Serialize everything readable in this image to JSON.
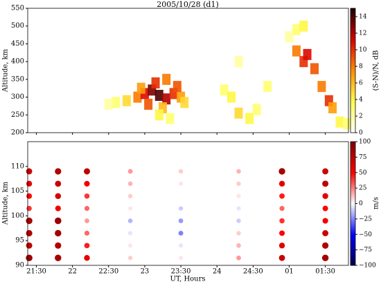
{
  "chart_data": [
    {
      "type": "heatmap",
      "title": "2005/10/28 (d1)",
      "ylabel": "Altitude, km",
      "colorbar_label": "(S-N)/N, dB",
      "colormap": "hot_r",
      "xlim": [
        21.38,
        25.82
      ],
      "ylim": [
        200,
        550
      ],
      "yticks": [
        200,
        250,
        300,
        350,
        400,
        450,
        500,
        550
      ],
      "clim": [
        0,
        15
      ],
      "cticks": [
        0,
        2,
        4,
        6,
        8,
        10,
        12,
        14
      ],
      "x": [
        22.6,
        22.75,
        22.9,
        23.0,
        23.1,
        23.2,
        23.3,
        23.4,
        23.5,
        23.05,
        23.25,
        23.15,
        23.3,
        23.45,
        22.95,
        23.2,
        23.35,
        22.5,
        23.55,
        24.1,
        24.2,
        24.3,
        24.45,
        24.55,
        24.3,
        24.7,
        25.1,
        25.2,
        25.25,
        25.1,
        25.2,
        25.35,
        25.45,
        25.55,
        25.6,
        25.7,
        25.8,
        25.0
      ],
      "y": [
        285,
        290,
        300,
        310,
        320,
        305,
        295,
        310,
        300,
        280,
        270,
        340,
        350,
        330,
        325,
        250,
        240,
        280,
        285,
        320,
        300,
        255,
        240,
        265,
        400,
        330,
        430,
        400,
        420,
        490,
        500,
        380,
        330,
        290,
        270,
        230,
        225,
        470
      ],
      "values": [
        3,
        5,
        8,
        11,
        13,
        14,
        12,
        10,
        7,
        9,
        6,
        10,
        8,
        9,
        7,
        4,
        3,
        2,
        5,
        3,
        4,
        5,
        4,
        3,
        2,
        3,
        8,
        10,
        11,
        3,
        4,
        9,
        8,
        10,
        7,
        4,
        3,
        2
      ]
    },
    {
      "type": "scatter",
      "xlabel": "UT, Hours",
      "ylabel": "Altitude, km",
      "colorbar_label": "m/s",
      "colormap": "seismic",
      "xlim": [
        21.38,
        25.82
      ],
      "ylim": [
        90,
        115
      ],
      "yticks": [
        90,
        95,
        100,
        105,
        110
      ],
      "xticks": [
        {
          "value": 21.5,
          "label": "21:30"
        },
        22,
        {
          "value": 22.5,
          "label": "22:30"
        },
        23,
        {
          "value": 23.5,
          "label": "23:30"
        },
        24,
        {
          "value": 24.5,
          "label": "24:30"
        },
        {
          "value": 25,
          "label": "01"
        },
        {
          "value": 25.5,
          "label": "01:30"
        }
      ],
      "clim": [
        -100,
        100
      ],
      "cticks": [
        {
          "value": -100,
          "label": "−100"
        },
        {
          "value": -75,
          "label": "−75"
        },
        {
          "value": -50,
          "label": "−50"
        },
        {
          "value": -25,
          "label": "−25"
        },
        0,
        25,
        50,
        75,
        100
      ],
      "x": [
        21.4,
        21.8,
        22.2,
        22.8,
        23.5,
        24.3,
        24.9,
        25.5,
        21.4,
        21.8,
        22.2,
        22.8,
        23.5,
        24.3,
        24.9,
        25.5,
        21.4,
        21.8,
        22.2,
        22.8,
        23.5,
        24.3,
        24.9,
        25.5,
        21.4,
        21.8,
        22.2,
        22.8,
        23.5,
        24.3,
        24.9,
        25.5,
        21.4,
        21.8,
        22.2,
        22.8,
        23.5,
        24.3,
        24.9,
        25.5,
        21.4,
        21.8,
        22.2,
        22.8,
        23.5,
        24.3,
        24.9,
        25.5,
        21.4,
        21.8,
        22.2,
        22.8,
        23.5,
        24.3,
        24.9,
        25.5,
        21.4,
        21.8,
        22.2,
        22.8,
        23.5,
        24.3,
        24.9,
        25.5
      ],
      "y": [
        109,
        109,
        109,
        109,
        109,
        109,
        109,
        109,
        106.5,
        106.5,
        106.5,
        106.5,
        106.5,
        106.5,
        106.5,
        106.5,
        104,
        104,
        104,
        104,
        104,
        104,
        104,
        104,
        101.5,
        101.5,
        101.5,
        101.5,
        101.5,
        101.5,
        101.5,
        101.5,
        99,
        99,
        99,
        99,
        99,
        99,
        99,
        99,
        96.5,
        96.5,
        96.5,
        96.5,
        96.5,
        96.5,
        96.5,
        96.5,
        94,
        94,
        94,
        94,
        94,
        94,
        94,
        94,
        91.5,
        91.5,
        91.5,
        91.5,
        91.5,
        91.5,
        91.5,
        91.5
      ],
      "values": [
        70,
        80,
        75,
        20,
        10,
        15,
        85,
        70,
        60,
        70,
        55,
        15,
        5,
        10,
        60,
        75,
        50,
        65,
        40,
        10,
        0,
        5,
        45,
        60,
        40,
        55,
        30,
        5,
        -10,
        -5,
        30,
        50,
        85,
        90,
        20,
        -15,
        -20,
        -10,
        40,
        55,
        80,
        85,
        30,
        -5,
        -25,
        10,
        50,
        70,
        75,
        80,
        45,
        5,
        -5,
        15,
        60,
        80,
        90,
        85,
        60,
        10,
        5,
        20,
        70,
        85
      ]
    }
  ]
}
